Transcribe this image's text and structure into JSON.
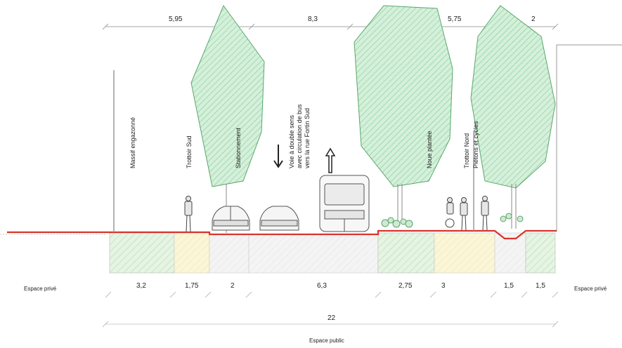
{
  "top_dimensions": [
    "5,95",
    "8,3",
    "5,75",
    "2"
  ],
  "bottom_dimensions": [
    "3,2",
    "1,75",
    "2",
    "6,3",
    "2,75",
    "3",
    "1,5",
    "1,5"
  ],
  "total_width": "22",
  "labels": {
    "private_left": "Espace privé",
    "private_right": "Espace privé",
    "public": "Espace public",
    "massif": "Massif engazonné",
    "trottoir_sud": "Trottoir Sud",
    "stationnement": "Stationnement",
    "voie_line1": "Voie à double sens",
    "voie_line2": "avec circulation de bus",
    "voie_line3": "vers la rue Fortin Sud",
    "noue": "Noue plantée",
    "trottoir_nord": "Trottoir Nord",
    "pietons": "Piétons et cycles"
  },
  "colors": {
    "ground_line": "#d9342b",
    "tree_fill": "#cfeed6",
    "tree_hatch": "#7cc58f",
    "green_band": "#e4f3e1",
    "yellow_band": "#fbf5d6",
    "grey_band": "#f1f1f1"
  }
}
